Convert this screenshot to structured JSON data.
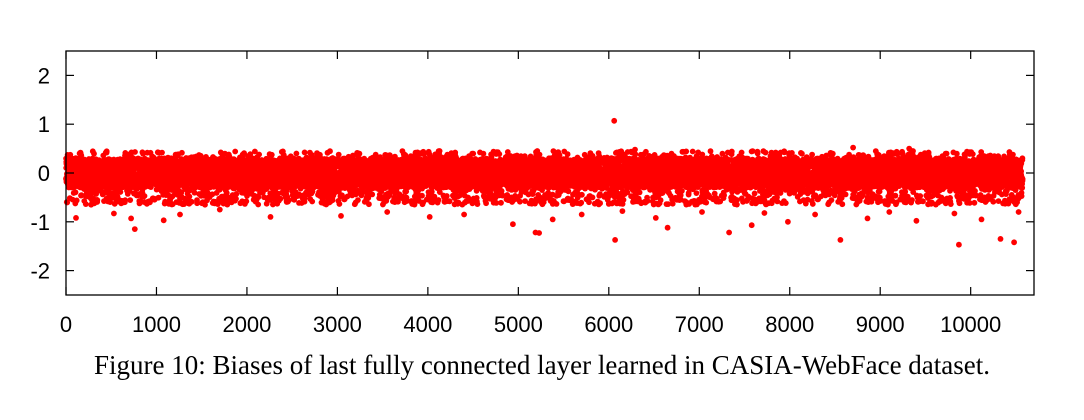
{
  "caption": "Figure 10: Biases of last fully connected layer learned in CASIA-WebFace dataset.",
  "chart_data": {
    "type": "scatter",
    "title": "",
    "xlabel": "",
    "ylabel": "",
    "xlim": [
      0,
      10700
    ],
    "ylim": [
      -2.5,
      2.5
    ],
    "xticks": [
      0,
      1000,
      2000,
      3000,
      4000,
      5000,
      6000,
      7000,
      8000,
      9000,
      10000
    ],
    "yticks": [
      2,
      1,
      0,
      -1,
      -2
    ],
    "xtick_labels": [
      "0",
      "1000",
      "2000",
      "3000",
      "4000",
      "5000",
      "6000",
      "7000",
      "8000",
      "9000",
      "10000"
    ],
    "ytick_labels": [
      "2",
      "1",
      "0",
      "-1",
      "-2"
    ],
    "grid": false,
    "marker_color": "#ff0000",
    "n_points": 10575,
    "bulk_range": [
      -0.3,
      0.3
    ],
    "points": [
      [
        6060,
        1.07
      ],
      [
        6070,
        -1.37
      ],
      [
        9870,
        -1.47
      ],
      [
        10480,
        -1.42
      ],
      [
        10330,
        -1.35
      ],
      [
        8560,
        -1.37
      ],
      [
        5190,
        -1.22
      ],
      [
        5230,
        -1.23
      ],
      [
        6650,
        -1.12
      ],
      [
        7330,
        -1.22
      ],
      [
        7580,
        -1.07
      ],
      [
        760,
        -1.15
      ],
      [
        110,
        -0.92
      ],
      [
        720,
        -0.93
      ],
      [
        1080,
        -0.97
      ],
      [
        1260,
        -0.85
      ],
      [
        2260,
        -0.9
      ],
      [
        3040,
        -0.88
      ],
      [
        4020,
        -0.9
      ],
      [
        4940,
        -1.05
      ],
      [
        5380,
        -0.95
      ],
      [
        6520,
        -0.92
      ],
      [
        7980,
        -1.0
      ],
      [
        8860,
        -0.93
      ],
      [
        9400,
        -0.98
      ],
      [
        10120,
        -0.95
      ],
      [
        530,
        -0.83
      ],
      [
        1700,
        -0.75
      ],
      [
        3550,
        -0.8
      ],
      [
        4400,
        -0.85
      ],
      [
        5700,
        -0.85
      ],
      [
        6150,
        -0.78
      ],
      [
        7030,
        -0.8
      ],
      [
        7720,
        -0.82
      ],
      [
        8280,
        -0.85
      ],
      [
        9100,
        -0.8
      ],
      [
        9820,
        -0.83
      ],
      [
        10530,
        -0.8
      ],
      [
        5210,
        0.45
      ],
      [
        6290,
        0.48
      ],
      [
        8700,
        0.52
      ],
      [
        9320,
        0.5
      ],
      [
        440,
        0.42
      ],
      [
        7900,
        0.42
      ]
    ]
  }
}
